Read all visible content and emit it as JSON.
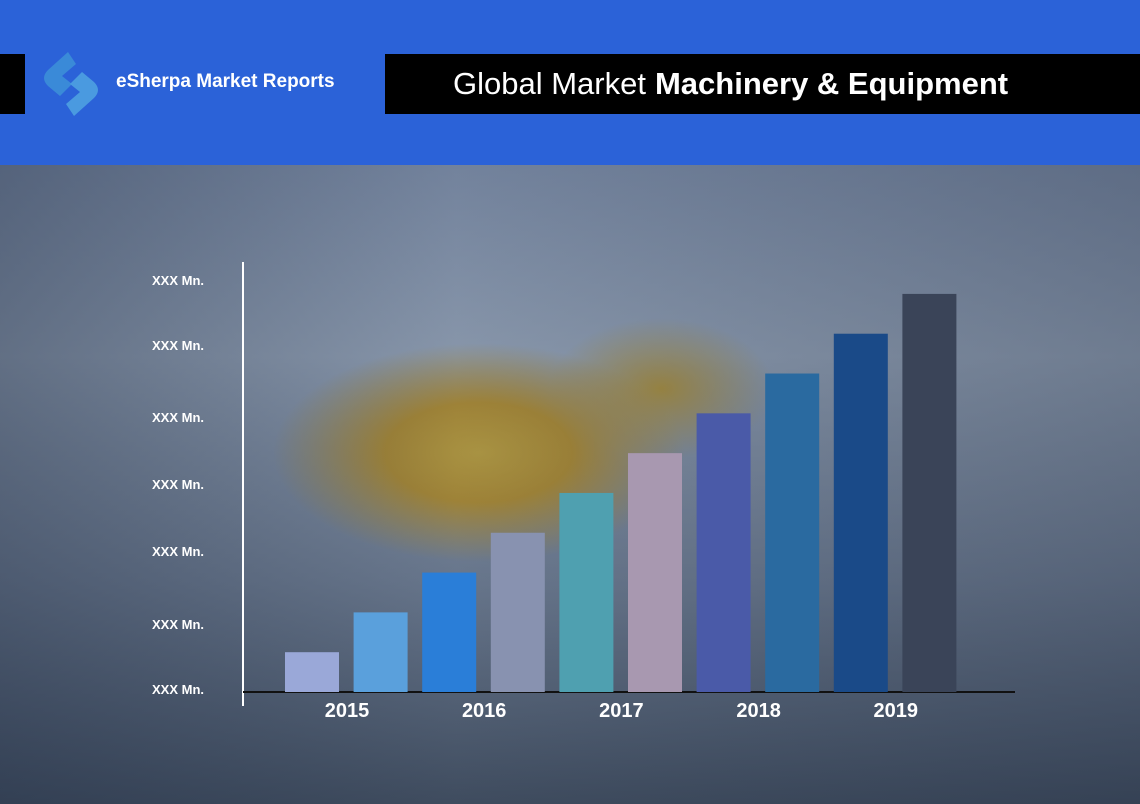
{
  "header": {
    "brand": "eSherpa Market Reports",
    "title_light": "Global Market",
    "title_bold": "Machinery & Equipment"
  },
  "chart_data": {
    "type": "bar",
    "title": "Global Market Machinery & Equipment",
    "categories": [
      "2015",
      "",
      "2016",
      "",
      "2017",
      "",
      "2018",
      "",
      "2019",
      ""
    ],
    "x_tick_labels": [
      "2015",
      "2016",
      "2017",
      "2018",
      "2019"
    ],
    "values": [
      1,
      2,
      3,
      4,
      5,
      6,
      7,
      8,
      9,
      10
    ],
    "colors": [
      "#9aa8d8",
      "#5aa0dc",
      "#2a7ed8",
      "#8892b0",
      "#4fa0b0",
      "#a898b0",
      "#4a5aa8",
      "#2a6aa0",
      "#1a4a88",
      "#3a4458"
    ],
    "y_tick_labels": [
      "XXX Mn.",
      "XXX Mn.",
      "XXX Mn.",
      "XXX Mn.",
      "XXX Mn.",
      "XXX Mn.",
      "XXX Mn."
    ],
    "ylim": [
      0,
      10.5
    ],
    "xlabel": "",
    "ylabel": "",
    "grid": false
  }
}
